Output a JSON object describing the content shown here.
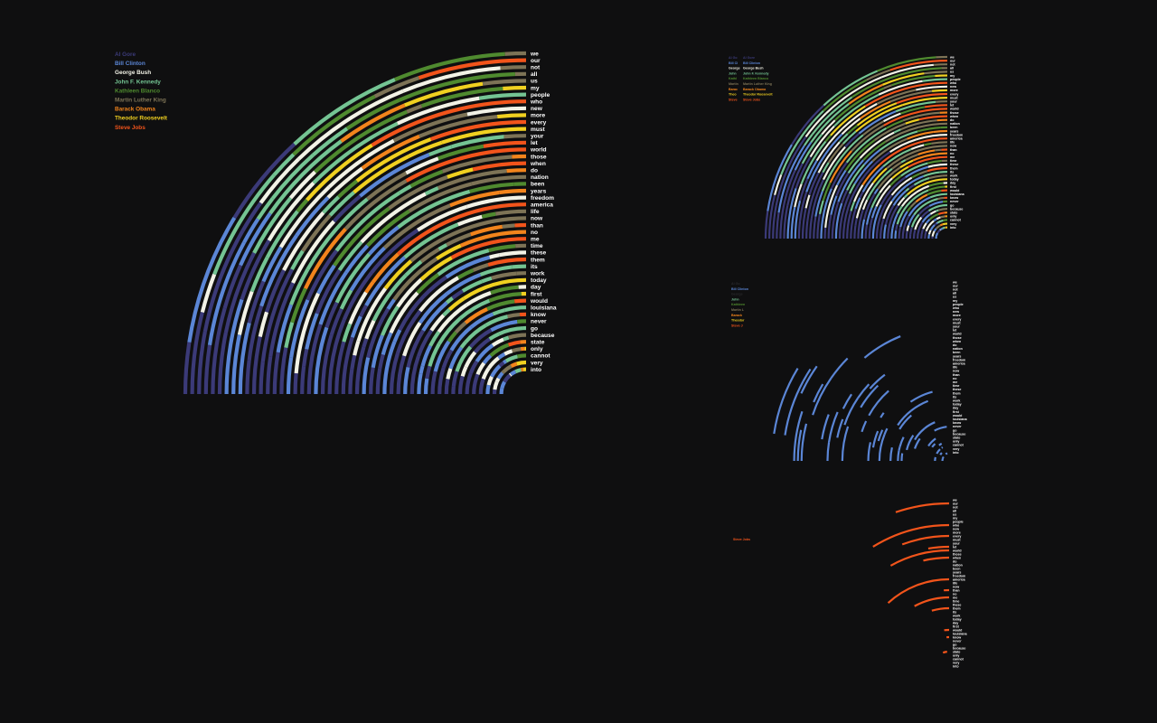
{
  "colors": {
    "Al Gore": "#3b3a78",
    "Bill Clinton": "#5b86d6",
    "George Bush": "#f2f2e6",
    "John F. Kennedy": "#74c493",
    "Kathleen Blanco": "#4f8a2f",
    "Martin Luther King": "#7d7356",
    "Barack Obama": "#f2841c",
    "Theodor Roosevelt": "#f0d020",
    "Steve Jobs": "#f2541b"
  },
  "chart_data": [
    {
      "type": "radial-stacked-arcs",
      "panel": "main",
      "legend": [
        "Al Gore",
        "Bill Clinton",
        "George Bush",
        "John F. Kennedy",
        "Kathleen Blanco",
        "Martin Luther King",
        "Barack Obama",
        "Theodor Roosevelt",
        "Steve Jobs"
      ],
      "categories": [
        "we",
        "our",
        "not",
        "all",
        "us",
        "my",
        "people",
        "who",
        "new",
        "more",
        "every",
        "must",
        "your",
        "let",
        "world",
        "those",
        "when",
        "do",
        "nation",
        "been",
        "years",
        "freedom",
        "america",
        "life",
        "now",
        "than",
        "no",
        "me",
        "time",
        "these",
        "them",
        "its",
        "work",
        "today",
        "day",
        "first",
        "would",
        "louisiana",
        "know",
        "never",
        "go",
        "because",
        "state",
        "only",
        "cannot",
        "very",
        "into"
      ],
      "highlight": "all"
    },
    {
      "type": "radial-stacked-arcs",
      "panel": "top-right",
      "legend": [
        "Al Gore",
        "Bill Clinton",
        "George Bush",
        "John F. Kennedy",
        "Kathleen Blanco",
        "Martin Luther King",
        "Barack Obama",
        "Theodor Roosevelt",
        "Steve Jobs"
      ],
      "legend_short": [
        "Al Go",
        "Bill Cl",
        "George",
        "John",
        "Kathl",
        "Martin",
        "Barac",
        "Theo",
        "Steve"
      ],
      "highlight": "all"
    },
    {
      "type": "radial-stacked-arcs",
      "panel": "middle-right",
      "legend_short": [
        "Al Go",
        "Bill Clinton",
        "George",
        "John",
        "Kathleen",
        "Martin L",
        "Barack",
        "Theodor",
        "Steve J"
      ],
      "highlight": "Bill Clinton"
    },
    {
      "type": "radial-stacked-arcs",
      "panel": "bottom-right",
      "legend_visible": [
        "Steve Jobs"
      ],
      "highlight": "Steve Jobs"
    }
  ]
}
